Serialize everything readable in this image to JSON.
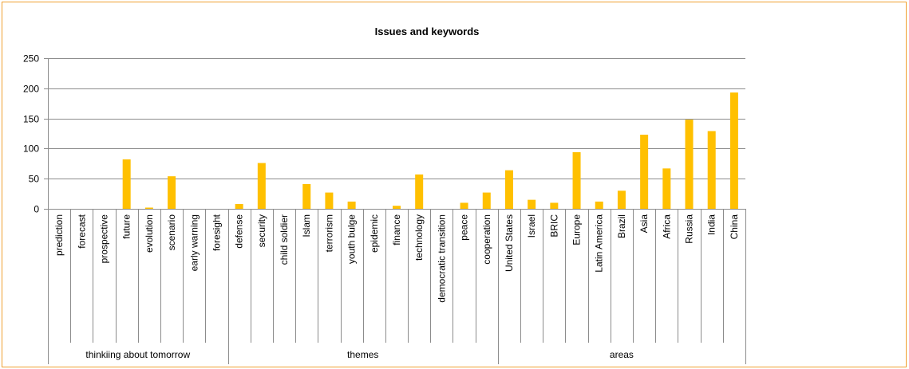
{
  "chart_data": {
    "type": "bar",
    "title": "Issues and keywords",
    "xlabel": "",
    "ylabel": "",
    "ylim": [
      0,
      250
    ],
    "yticks": [
      0,
      50,
      100,
      150,
      200,
      250
    ],
    "grid": true,
    "legend": "none",
    "bar_color": "#ffc000",
    "categories": [
      "prediction",
      "forecast",
      "prospective",
      "future",
      "evolution",
      "scenario",
      "early warning",
      "foresight",
      "defense",
      "security",
      "child soldier",
      "Islam",
      "terrorism",
      "youth bulge",
      "epidemic",
      "finance",
      "technology",
      "democratic transition",
      "peace",
      "cooperation",
      "United States",
      "Israel",
      "BRIC",
      "Europe",
      "Latin America",
      "Brazil",
      "Asia",
      "Africa",
      "Russia",
      "India",
      "China"
    ],
    "values": [
      0,
      0,
      0,
      82,
      2,
      54,
      0,
      0,
      8,
      76,
      0,
      41,
      27,
      12,
      0,
      5,
      57,
      0,
      10,
      27,
      64,
      15,
      10,
      94,
      12,
      30,
      123,
      67,
      148,
      129,
      193
    ],
    "groups": [
      {
        "label": "thinkiing about tomorrow",
        "count": 8
      },
      {
        "label": "themes",
        "count": 12
      },
      {
        "label": "areas",
        "count": 11
      }
    ]
  }
}
